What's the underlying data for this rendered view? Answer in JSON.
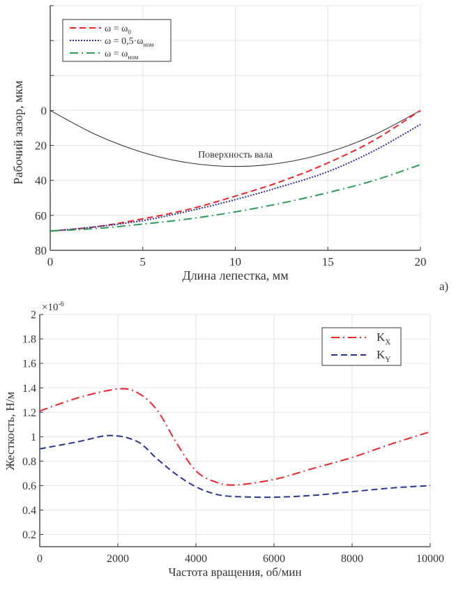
{
  "panel_label": "а)",
  "chart_data": [
    {
      "type": "line",
      "xlabel": "Длина лепестка, мм",
      "ylabel": "Рабочий зазор, мкм",
      "xlim": [
        0,
        20
      ],
      "ylim": [
        -60,
        80
      ],
      "y_reversed": true,
      "grid": true,
      "xticks": [
        0,
        5,
        10,
        15,
        20
      ],
      "yticks": [
        -60,
        -40,
        -20,
        0,
        20,
        40,
        60,
        80
      ],
      "ytick_labels": [
        "",
        "",
        "",
        "0",
        "20",
        "40",
        "60",
        "80"
      ],
      "legend_position": "top-left",
      "annotation": {
        "text": "Поверхность вала",
        "x": 10,
        "y": 27
      },
      "series": [
        {
          "name": "Поверхность вала",
          "legend": false,
          "color": "#333333",
          "style": "solid",
          "x": [
            0,
            2.5,
            5,
            7.5,
            10,
            12.5,
            15,
            17.5,
            20
          ],
          "y": [
            0,
            14,
            24,
            30,
            32,
            30,
            24,
            14,
            0
          ]
        },
        {
          "name": "ω = ω",
          "sub": "0",
          "legend": true,
          "color": "#e8242b",
          "style": "dashed",
          "x": [
            0,
            2.5,
            5,
            7.5,
            10,
            12.5,
            15,
            17.5,
            20
          ],
          "y": [
            69,
            66.5,
            62,
            56.5,
            49,
            40.5,
            30,
            17,
            0
          ]
        },
        {
          "name": "ω = 0,5·ω",
          "sub": "ном",
          "legend": true,
          "color": "#2a2f8f",
          "style": "dotted",
          "x": [
            0,
            2.5,
            5,
            7.5,
            10,
            12.5,
            15,
            17.5,
            20
          ],
          "y": [
            69,
            66.5,
            63,
            57.5,
            51,
            43.5,
            35,
            23,
            8
          ]
        },
        {
          "name": "ω = ω",
          "sub": "ном",
          "legend": true,
          "color": "#2e9a5a",
          "style": "dashdot",
          "x": [
            0,
            2.5,
            5,
            7.5,
            10,
            12.5,
            15,
            17.5,
            20
          ],
          "y": [
            69,
            67.5,
            65,
            62,
            58,
            53,
            47,
            40,
            31
          ]
        }
      ]
    },
    {
      "type": "line",
      "xlabel": "Частота вращения, об/мин",
      "ylabel": "Жесткость, Н/м",
      "exponent_label": "×10",
      "exponent_power": "-6",
      "xlim": [
        0,
        10000
      ],
      "ylim": [
        0.1,
        2
      ],
      "grid": true,
      "xticks": [
        0,
        2000,
        4000,
        6000,
        8000,
        10000
      ],
      "yticks": [
        0.2,
        0.4,
        0.6,
        0.8,
        1,
        1.2,
        1.4,
        1.6,
        1.8,
        2
      ],
      "legend_position": "top-right",
      "series": [
        {
          "name": "K",
          "sub": "X",
          "color": "#e8242b",
          "style": "dashdot",
          "x": [
            0,
            1000,
            2000,
            2500,
            3000,
            3500,
            4000,
            4500,
            5000,
            6000,
            7000,
            8000,
            9000,
            10000
          ],
          "y": [
            1.21,
            1.32,
            1.39,
            1.36,
            1.22,
            0.95,
            0.72,
            0.63,
            0.605,
            0.65,
            0.74,
            0.83,
            0.94,
            1.04
          ]
        },
        {
          "name": "K",
          "sub": "Y",
          "color": "#2a3590",
          "style": "dashed",
          "x": [
            0,
            1000,
            1800,
            2500,
            3000,
            3500,
            4000,
            4500,
            5000,
            6000,
            7000,
            8000,
            9000,
            10000
          ],
          "y": [
            0.9,
            0.96,
            1.01,
            0.96,
            0.82,
            0.69,
            0.59,
            0.53,
            0.51,
            0.505,
            0.52,
            0.55,
            0.58,
            0.6
          ]
        }
      ]
    }
  ]
}
